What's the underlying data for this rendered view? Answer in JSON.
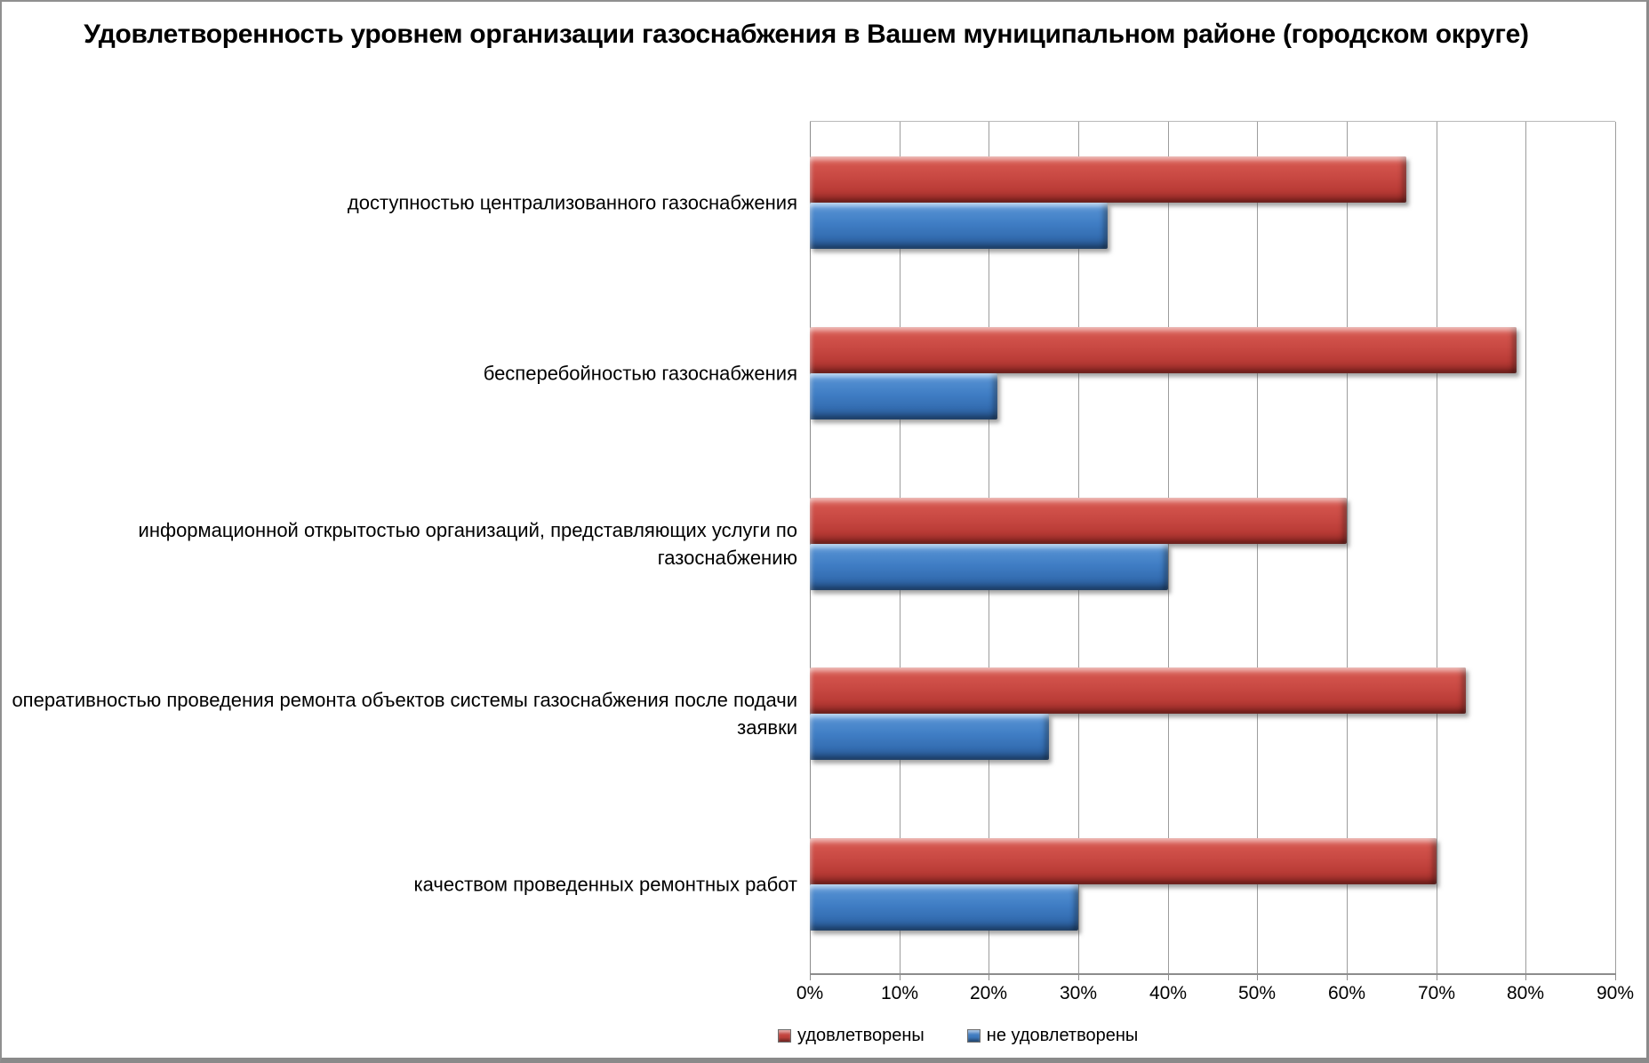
{
  "title": "Удовлетворенность уровнем организации газоснабжения в Вашем муниципальном районе (городском округе)",
  "chart_data": {
    "type": "bar",
    "orientation": "horizontal",
    "title": "Удовлетворенность уровнем организации газоснабжения в Вашем муниципальном районе (городском округе)",
    "categories": [
      "доступностью централизованного газоснабжения",
      "бесперебойностью газоснабжения",
      "информационной открытостью организаций, представляющих услуги по газоснабжению",
      "оперативностью проведения ремонта объектов системы газоснабжения после подачи заявки",
      "качеством проведенных ремонтных работ"
    ],
    "series": [
      {
        "name": "удовлетворены",
        "color": "#C2423C",
        "values": [
          66.7,
          79.0,
          60.0,
          73.3,
          70.0
        ]
      },
      {
        "name": "не удовлетворены",
        "color": "#3E7BC1",
        "values": [
          33.3,
          21.0,
          40.0,
          26.7,
          30.0
        ]
      }
    ],
    "x_ticks": [
      "0%",
      "10%",
      "20%",
      "30%",
      "40%",
      "50%",
      "60%",
      "70%",
      "80%",
      "90%"
    ],
    "xlim": [
      0,
      90
    ],
    "grid": true,
    "legend_position": "bottom"
  }
}
